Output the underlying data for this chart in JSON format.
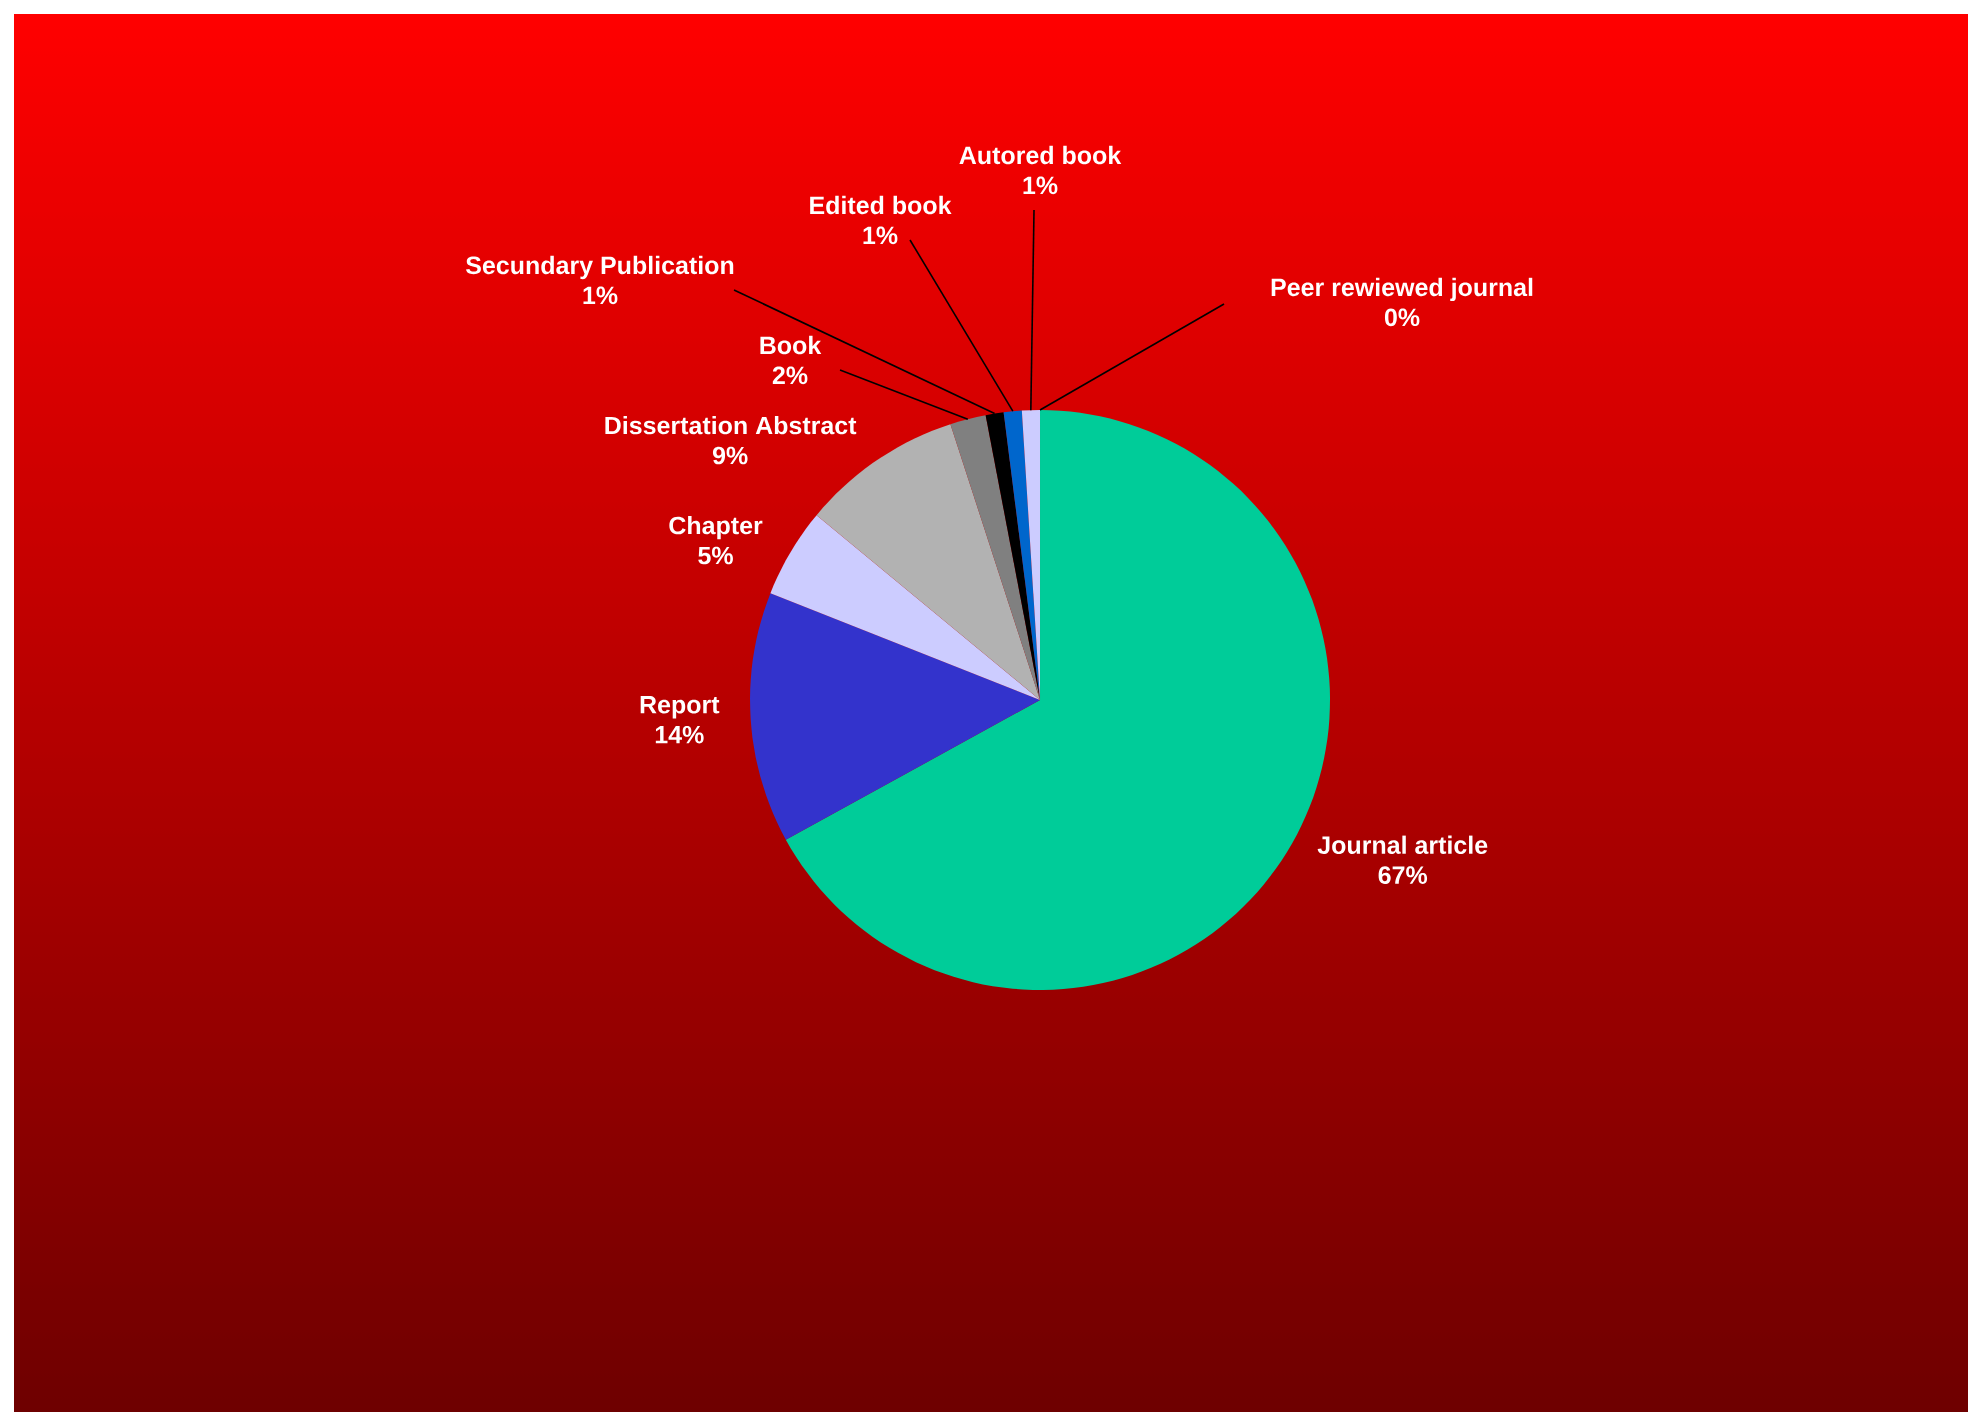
{
  "chart_data": {
    "type": "pie",
    "categories": [
      "Journal article",
      "Report",
      "Chapter",
      "Dissertation Abstract",
      "Book",
      "Secundary Publication",
      "Edited book",
      "Autored book",
      "Peer rewiewed journal"
    ],
    "values": [
      67,
      14,
      5,
      9,
      2,
      1,
      1,
      1,
      0
    ],
    "colors": [
      "#00cc99",
      "#3333cc",
      "#ccccff",
      "#b2b2b2",
      "#808080",
      "#000000",
      "#0066cc",
      "#ccccff",
      "#ffffff"
    ],
    "value_labels": [
      "67%",
      "14%",
      "5%",
      "9%",
      "2%",
      "1%",
      "1%",
      "1%",
      "0%"
    ]
  }
}
